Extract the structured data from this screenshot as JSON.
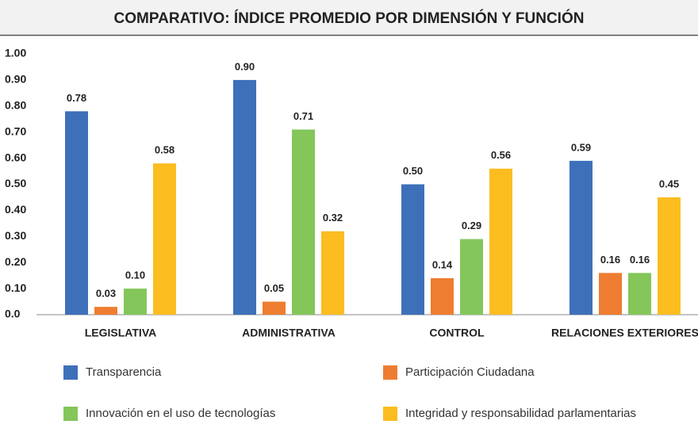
{
  "chart_data": {
    "type": "bar",
    "title": "COMPARATIVO: ÍNDICE PROMEDIO POR DIMENSIÓN Y FUNCIÓN",
    "categories": [
      "LEGISLATIVA",
      "ADMINISTRATIVA",
      "CONTROL",
      "RELACIONES EXTERIORES"
    ],
    "series": [
      {
        "name": "Transparencia",
        "color": "#3e70ba",
        "values": [
          0.78,
          0.9,
          0.5,
          0.59
        ],
        "value_labels": [
          "0.78",
          "0.90",
          "0.50",
          "0.59"
        ]
      },
      {
        "name": "Participación Ciudadana",
        "color": "#ee7d31",
        "values": [
          0.03,
          0.05,
          0.14,
          0.16
        ],
        "value_labels": [
          "0.03",
          "0.05",
          "0.14",
          "0.16"
        ]
      },
      {
        "name": "Innovación en el uso de tecnologías",
        "color": "#84c65a",
        "values": [
          0.1,
          0.71,
          0.29,
          0.16
        ],
        "value_labels": [
          "0.10",
          "0.71",
          "0.29",
          "0.16"
        ]
      },
      {
        "name": "Integridad y responsabilidad parlamentarias",
        "color": "#fbbd20",
        "values": [
          0.58,
          0.32,
          0.56,
          0.45
        ],
        "value_labels": [
          "0.58",
          "0.32",
          "0.56",
          "0.45"
        ]
      }
    ],
    "ylim": [
      0,
      1
    ],
    "yticks": [
      {
        "value": 0,
        "label": "0.0"
      },
      {
        "value": 0.1,
        "label": "0.10"
      },
      {
        "value": 0.2,
        "label": "0.20"
      },
      {
        "value": 0.3,
        "label": "0.30"
      },
      {
        "value": 0.4,
        "label": "0.40"
      },
      {
        "value": 0.5,
        "label": "0.50"
      },
      {
        "value": 0.6,
        "label": "0.60"
      },
      {
        "value": 0.7,
        "label": "0.70"
      },
      {
        "value": 0.8,
        "label": "0.80"
      },
      {
        "value": 0.9,
        "label": "0.90"
      },
      {
        "value": 1,
        "label": "1.00"
      }
    ],
    "grid": false
  }
}
